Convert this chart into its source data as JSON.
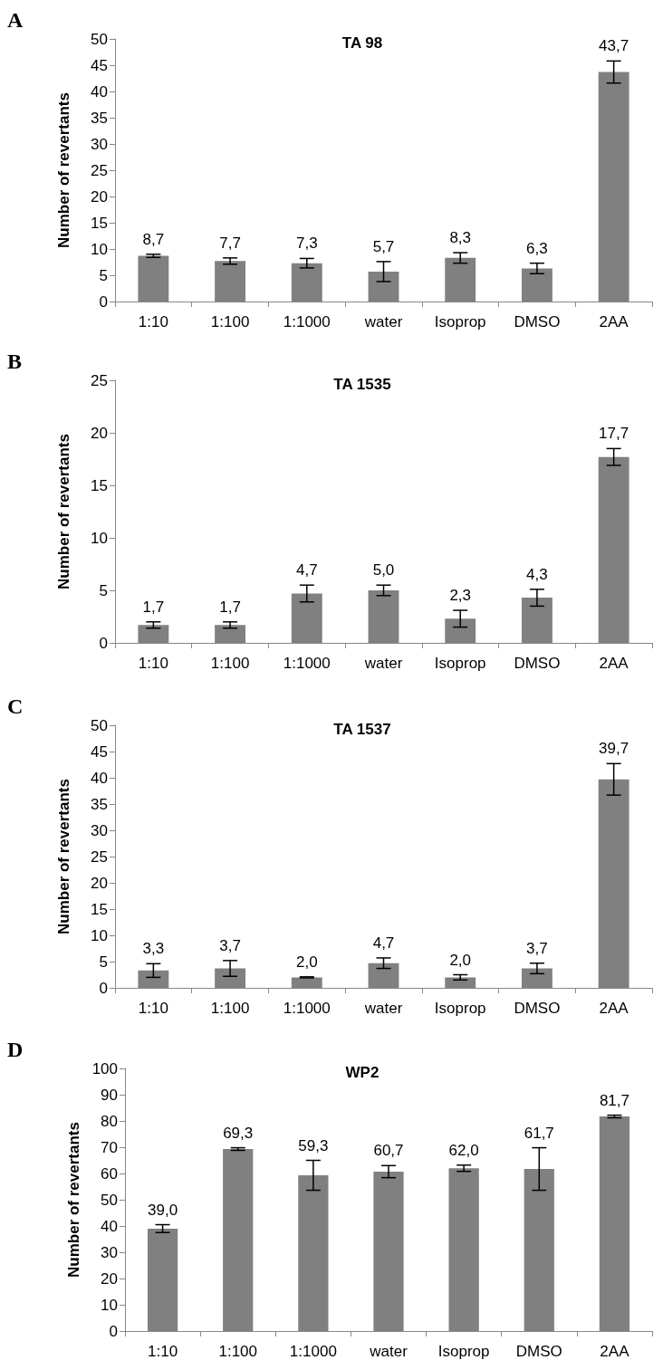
{
  "chart_data": [
    {
      "type": "bar",
      "title": "TA 98",
      "ylabel": "Number of revertants",
      "annotations": [
        "A"
      ],
      "categories": [
        "1:10",
        "1:100",
        "1:1000",
        "water",
        "Isoprop",
        "DMSO",
        "2AA"
      ],
      "values": [
        8.7,
        7.7,
        7.3,
        5.7,
        8.3,
        6.3,
        43.7
      ],
      "value_labels": [
        "8,7",
        "7,7",
        "7,3",
        "5,7",
        "8,3",
        "6,3",
        "43,7"
      ],
      "errors": [
        0.3,
        0.6,
        0.9,
        1.9,
        1.0,
        1.0,
        2.1
      ],
      "color": "#808080",
      "ylim": [
        0,
        50
      ],
      "yticks": [
        0,
        5,
        10,
        15,
        20,
        25,
        30,
        35,
        40,
        45,
        50
      ]
    },
    {
      "type": "bar",
      "title": "TA 1535",
      "ylabel": "Number of revertants",
      "annotations": [
        "B"
      ],
      "categories": [
        "1:10",
        "1:100",
        "1:1000",
        "water",
        "Isoprop",
        "DMSO",
        "2AA"
      ],
      "values": [
        1.7,
        1.7,
        4.7,
        5.0,
        2.3,
        4.3,
        17.7
      ],
      "value_labels": [
        "1,7",
        "1,7",
        "4,7",
        "5,0",
        "2,3",
        "4,3",
        "17,7"
      ],
      "errors": [
        0.3,
        0.3,
        0.8,
        0.5,
        0.8,
        0.8,
        0.8
      ],
      "color": "#808080",
      "ylim": [
        0,
        25
      ],
      "yticks": [
        0,
        5,
        10,
        15,
        20,
        25
      ]
    },
    {
      "type": "bar",
      "title": "TA 1537",
      "ylabel": "Number of revertants",
      "annotations": [
        "C"
      ],
      "categories": [
        "1:10",
        "1:100",
        "1:1000",
        "water",
        "Isoprop",
        "DMSO",
        "2AA"
      ],
      "values": [
        3.3,
        3.7,
        2.0,
        4.7,
        2.0,
        3.7,
        39.7
      ],
      "value_labels": [
        "3,3",
        "3,7",
        "2,0",
        "4,7",
        "2,0",
        "3,7",
        "39,7"
      ],
      "errors": [
        1.3,
        1.5,
        0.1,
        1.0,
        0.5,
        1.0,
        3.0
      ],
      "color": "#808080",
      "ylim": [
        0,
        50
      ],
      "yticks": [
        0,
        5,
        10,
        15,
        20,
        25,
        30,
        35,
        40,
        45,
        50
      ]
    },
    {
      "type": "bar",
      "title": "WP2",
      "ylabel": "Number of revertants",
      "annotations": [
        "D"
      ],
      "categories": [
        "1:10",
        "1:100",
        "1:1000",
        "water",
        "Isoprop",
        "DMSO",
        "2AA"
      ],
      "values": [
        39.0,
        69.3,
        59.3,
        60.7,
        62.0,
        61.7,
        81.7
      ],
      "value_labels": [
        "39,0",
        "69,3",
        "59,3",
        "60,7",
        "62,0",
        "61,7",
        "81,7"
      ],
      "errors": [
        1.5,
        0.5,
        5.7,
        2.3,
        1.2,
        8.1,
        0.5
      ],
      "color": "#808080",
      "ylim": [
        0,
        100
      ],
      "yticks": [
        0,
        10,
        20,
        30,
        40,
        50,
        60,
        70,
        80,
        90,
        100
      ]
    }
  ]
}
